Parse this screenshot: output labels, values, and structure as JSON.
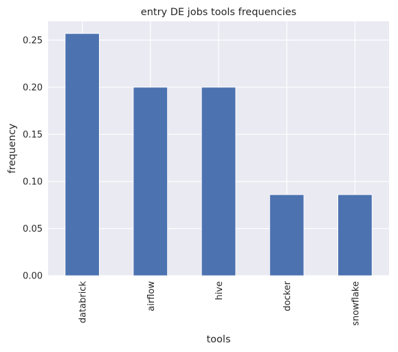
{
  "chart_data": {
    "type": "bar",
    "title": "entry DE jobs tools frequencies",
    "xlabel": "tools",
    "ylabel": "frequency",
    "categories": [
      "databrick",
      "airflow",
      "hive",
      "docker",
      "snowflake"
    ],
    "values": [
      0.257,
      0.2,
      0.2,
      0.086,
      0.086
    ],
    "ylim": [
      0,
      0.27
    ],
    "yticks": [
      "0.00",
      "0.05",
      "0.10",
      "0.15",
      "0.20",
      "0.25"
    ],
    "grid": true,
    "bar_color": "#4c72b0",
    "plot_background": "#eaeaf2"
  }
}
